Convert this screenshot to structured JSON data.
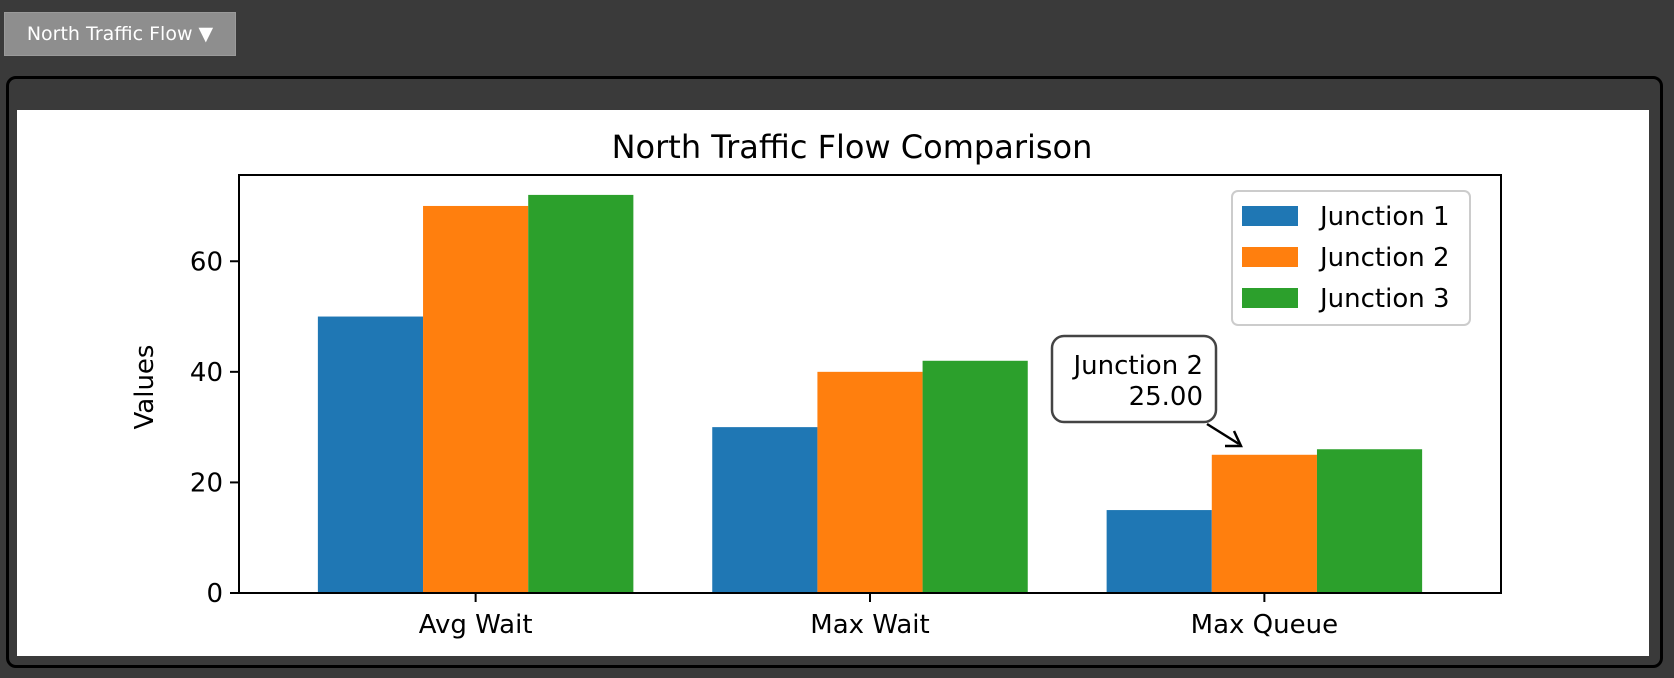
{
  "dropdown": {
    "label": "North Traffic Flow ▼"
  },
  "chart_data": {
    "type": "bar",
    "title": "North Traffic Flow Comparison",
    "xlabel": "",
    "ylabel": "Values",
    "categories": [
      "Avg Wait",
      "Max Wait",
      "Max Queue"
    ],
    "series": [
      {
        "name": "Junction 1",
        "values": [
          50,
          30,
          15
        ],
        "color": "#1f77b4"
      },
      {
        "name": "Junction 2",
        "values": [
          70,
          40,
          25
        ],
        "color": "#ff7f0e"
      },
      {
        "name": "Junction 3",
        "values": [
          72,
          42,
          26
        ],
        "color": "#2ca02c"
      }
    ],
    "ylim": [
      0,
      75.6
    ],
    "yticks": [
      0,
      20,
      40,
      60
    ],
    "grid": false,
    "legend": "top-right",
    "annotation": {
      "text_line1": "Junction 2",
      "text_line2": "25.00",
      "series": "Junction 2",
      "category": "Max Queue",
      "value": 25
    }
  }
}
